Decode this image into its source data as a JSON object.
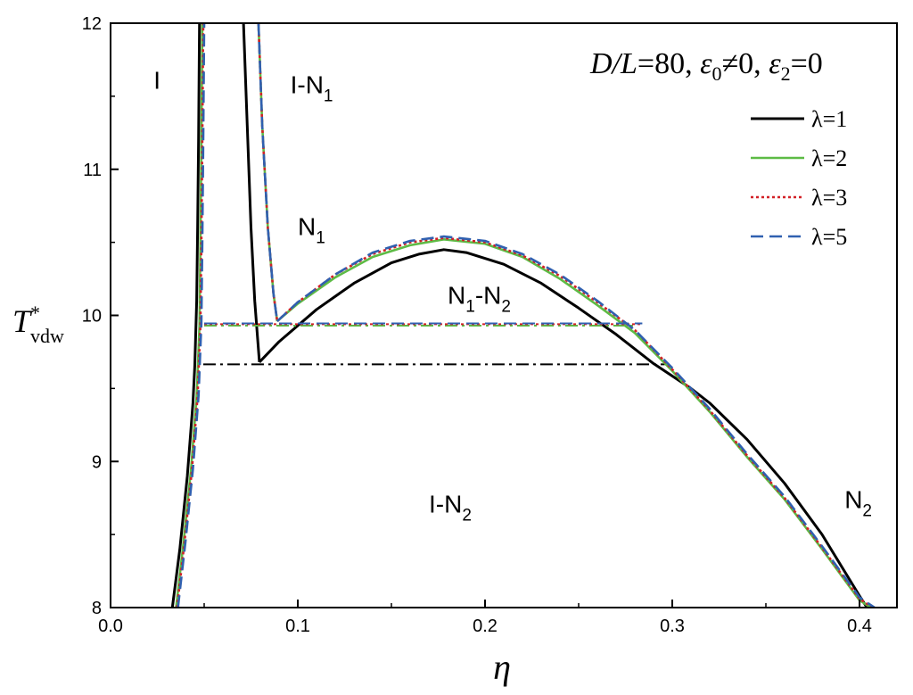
{
  "chart_data": {
    "type": "line",
    "params_label": {
      "part1": "D/L",
      "part2": "=80, ",
      "eps0": "ε",
      "eps0_sub": "0",
      "neq": "≠0, ",
      "eps2": "ε",
      "eps2_sub": "2",
      "eq": "=0"
    },
    "xlabel": "η",
    "ylabel": {
      "main": "T",
      "sup": "*",
      "sub": "vdw"
    },
    "xlim": [
      0.0,
      0.42
    ],
    "ylim": [
      8,
      12
    ],
    "xticks": [
      "0.0",
      "0.1",
      "0.2",
      "0.3",
      "0.4"
    ],
    "xtick_values": [
      0.0,
      0.1,
      0.2,
      0.3,
      0.4
    ],
    "yticks": [
      "8",
      "9",
      "10",
      "11",
      "12"
    ],
    "ytick_values": [
      8,
      9,
      10,
      11,
      12
    ],
    "legend_position": "top-right",
    "regions": [
      {
        "label": "I",
        "sub": "",
        "x": 0.023,
        "y": 11.55
      },
      {
        "label": "I-N",
        "sub": "1",
        "x": 0.096,
        "y": 11.52
      },
      {
        "label": "N",
        "sub": "1",
        "x": 0.1,
        "y": 10.55
      },
      {
        "label": "N",
        "sub": "1",
        "suffix": "-N",
        "sub2": "2",
        "x": 0.18,
        "y": 10.08
      },
      {
        "label": "I-N",
        "sub": "2",
        "x": 0.17,
        "y": 8.65
      },
      {
        "label": "N",
        "sub": "2",
        "x": 0.392,
        "y": 8.68
      }
    ],
    "series": [
      {
        "name": "λ=1",
        "color": "#000000",
        "dash": "solid",
        "curves": [
          [
            [
              0.033,
              8.0
            ],
            [
              0.037,
              8.4
            ],
            [
              0.041,
              8.9
            ],
            [
              0.044,
              9.4
            ],
            [
              0.045,
              9.66
            ],
            [
              0.046,
              10.1
            ],
            [
              0.0465,
              10.6
            ],
            [
              0.047,
              11.2
            ],
            [
              0.0475,
              12.0
            ]
          ],
          [
            [
              0.071,
              12.0
            ],
            [
              0.073,
              11.3
            ],
            [
              0.075,
              10.6
            ],
            [
              0.077,
              10.1
            ],
            [
              0.0795,
              9.68
            ]
          ],
          [
            [
              0.0795,
              9.68
            ],
            [
              0.09,
              9.82
            ],
            [
              0.11,
              10.04
            ],
            [
              0.13,
              10.22
            ],
            [
              0.15,
              10.36
            ],
            [
              0.165,
              10.42
            ],
            [
              0.178,
              10.45
            ],
            [
              0.19,
              10.43
            ],
            [
              0.21,
              10.35
            ],
            [
              0.23,
              10.22
            ],
            [
              0.25,
              10.05
            ],
            [
              0.27,
              9.87
            ],
            [
              0.29,
              9.67
            ],
            [
              0.31,
              9.5
            ],
            [
              0.32,
              9.4
            ],
            [
              0.34,
              9.15
            ],
            [
              0.36,
              8.85
            ],
            [
              0.38,
              8.5
            ],
            [
              0.4,
              8.08
            ],
            [
              0.404,
              8.0
            ]
          ]
        ],
        "tie_line": {
          "x1": 0.0495,
          "x2": 0.296,
          "y": 9.665
        }
      },
      {
        "name": "λ=2",
        "color": "#5dbb45",
        "dash": "solid",
        "curves": [
          [
            [
              0.035,
              8.0
            ],
            [
              0.039,
              8.45
            ],
            [
              0.043,
              8.95
            ],
            [
              0.046,
              9.45
            ],
            [
              0.0475,
              9.93
            ],
            [
              0.048,
              10.5
            ],
            [
              0.0485,
              11.2
            ],
            [
              0.049,
              12.0
            ]
          ],
          [
            [
              0.079,
              12.0
            ],
            [
              0.081,
              11.3
            ],
            [
              0.084,
              10.6
            ],
            [
              0.087,
              10.15
            ],
            [
              0.089,
              9.96
            ]
          ],
          [
            [
              0.089,
              9.96
            ],
            [
              0.1,
              10.08
            ],
            [
              0.12,
              10.26
            ],
            [
              0.14,
              10.4
            ],
            [
              0.16,
              10.48
            ],
            [
              0.178,
              10.52
            ],
            [
              0.2,
              10.49
            ],
            [
              0.22,
              10.4
            ],
            [
              0.24,
              10.25
            ],
            [
              0.26,
              10.07
            ],
            [
              0.28,
              9.88
            ],
            [
              0.3,
              9.62
            ],
            [
              0.32,
              9.34
            ],
            [
              0.34,
              9.03
            ],
            [
              0.36,
              8.74
            ],
            [
              0.38,
              8.4
            ],
            [
              0.4,
              8.05
            ],
            [
              0.406,
              8.0
            ]
          ]
        ],
        "tie_line": {
          "x1": 0.05,
          "x2": 0.281,
          "y": 9.93
        }
      },
      {
        "name": "λ=3",
        "color": "#d22027",
        "dash": "dot",
        "curves": [
          [
            [
              0.0355,
              8.0
            ],
            [
              0.0395,
              8.45
            ],
            [
              0.0435,
              8.95
            ],
            [
              0.0465,
              9.45
            ],
            [
              0.048,
              9.94
            ],
            [
              0.0485,
              10.5
            ],
            [
              0.049,
              11.2
            ],
            [
              0.0495,
              12.0
            ]
          ],
          [
            [
              0.079,
              12.0
            ],
            [
              0.081,
              11.3
            ],
            [
              0.084,
              10.6
            ],
            [
              0.087,
              10.15
            ],
            [
              0.089,
              9.96
            ]
          ],
          [
            [
              0.089,
              9.96
            ],
            [
              0.1,
              10.09
            ],
            [
              0.12,
              10.28
            ],
            [
              0.14,
              10.42
            ],
            [
              0.16,
              10.5
            ],
            [
              0.178,
              10.53
            ],
            [
              0.2,
              10.5
            ],
            [
              0.22,
              10.41
            ],
            [
              0.24,
              10.27
            ],
            [
              0.26,
              10.09
            ],
            [
              0.28,
              9.9
            ],
            [
              0.3,
              9.63
            ],
            [
              0.32,
              9.35
            ],
            [
              0.34,
              9.04
            ],
            [
              0.36,
              8.75
            ],
            [
              0.38,
              8.41
            ],
            [
              0.4,
              8.06
            ],
            [
              0.407,
              8.0
            ]
          ]
        ],
        "tie_line": {
          "x1": 0.05,
          "x2": 0.283,
          "y": 9.94
        }
      },
      {
        "name": "λ=5",
        "color": "#3060b0",
        "dash": "dash",
        "curves": [
          [
            [
              0.036,
              8.0
            ],
            [
              0.04,
              8.45
            ],
            [
              0.044,
              8.95
            ],
            [
              0.047,
              9.45
            ],
            [
              0.0485,
              9.945
            ],
            [
              0.049,
              10.5
            ],
            [
              0.0495,
              11.2
            ],
            [
              0.05,
              12.0
            ]
          ],
          [
            [
              0.079,
              12.0
            ],
            [
              0.081,
              11.3
            ],
            [
              0.084,
              10.6
            ],
            [
              0.087,
              10.15
            ],
            [
              0.089,
              9.96
            ]
          ],
          [
            [
              0.089,
              9.96
            ],
            [
              0.1,
              10.09
            ],
            [
              0.12,
              10.28
            ],
            [
              0.14,
              10.43
            ],
            [
              0.16,
              10.51
            ],
            [
              0.178,
              10.54
            ],
            [
              0.2,
              10.51
            ],
            [
              0.22,
              10.42
            ],
            [
              0.24,
              10.28
            ],
            [
              0.26,
              10.1
            ],
            [
              0.28,
              9.9
            ],
            [
              0.3,
              9.64
            ],
            [
              0.32,
              9.36
            ],
            [
              0.34,
              9.05
            ],
            [
              0.36,
              8.76
            ],
            [
              0.38,
              8.42
            ],
            [
              0.4,
              8.07
            ],
            [
              0.408,
              8.0
            ]
          ]
        ],
        "tie_line": {
          "x1": 0.05,
          "x2": 0.284,
          "y": 9.945
        }
      }
    ]
  }
}
